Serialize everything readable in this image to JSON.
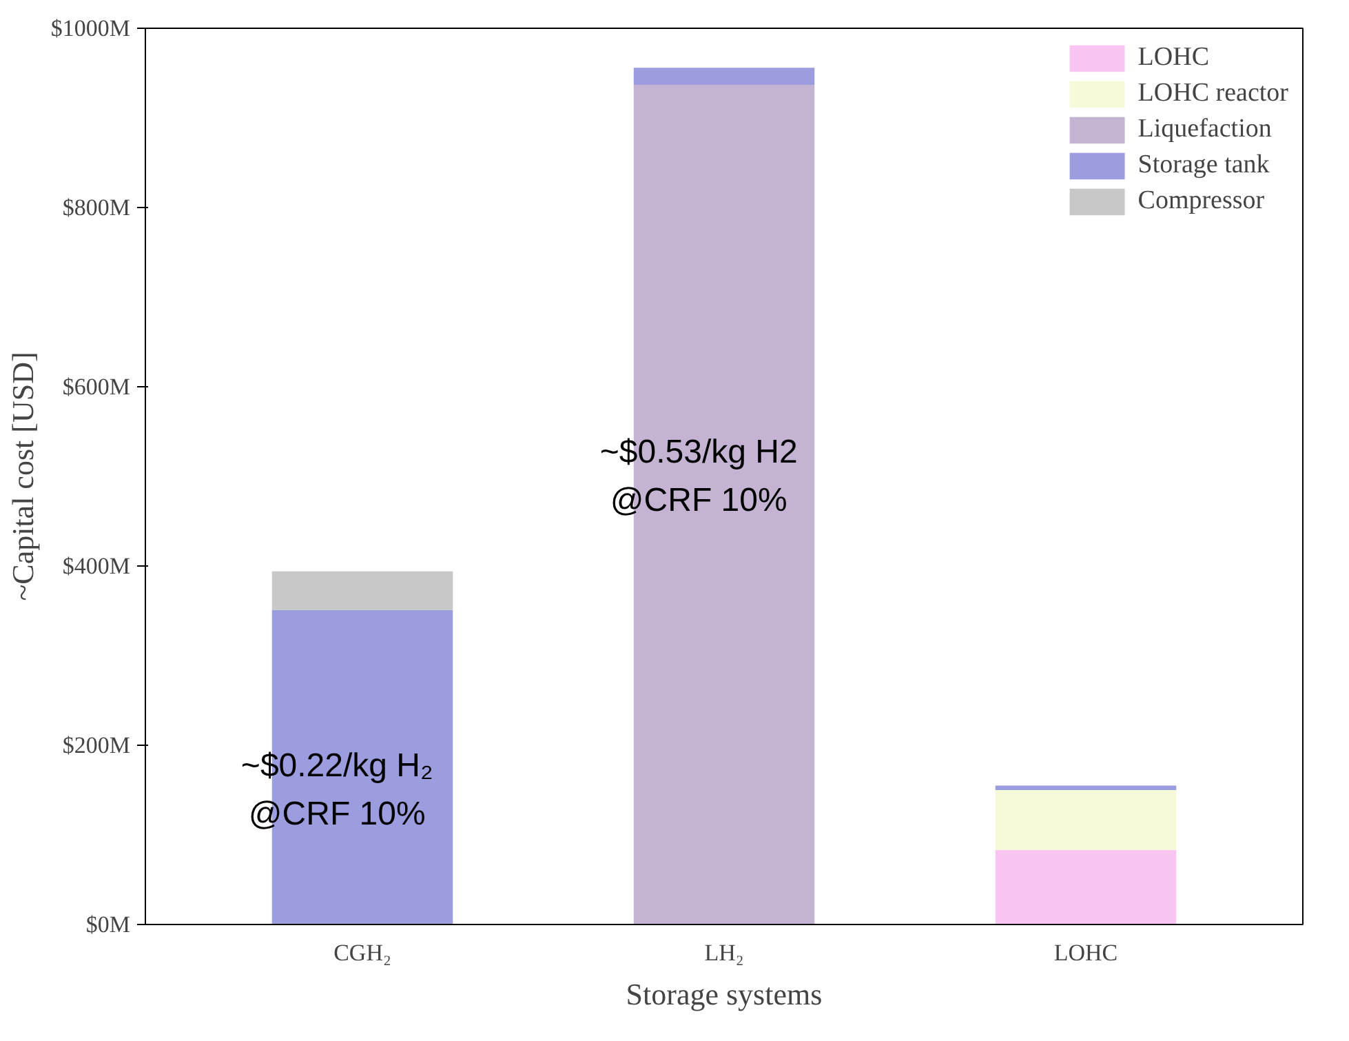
{
  "chart_data": {
    "type": "bar",
    "stacked": true,
    "xlabel": "Storage systems",
    "ylabel": "~Capital cost [USD]",
    "categories": [
      "CGH₂",
      "LH₂",
      "LOHC"
    ],
    "series": [
      {
        "name": "LOHC",
        "color": "#f9c6f3",
        "values": [
          null,
          null,
          83
        ]
      },
      {
        "name": "LOHC reactor",
        "color": "#f6fad9",
        "values": [
          null,
          null,
          67
        ]
      },
      {
        "name": "Liquefaction",
        "color": "#c4b3d2",
        "values": [
          null,
          937,
          null
        ]
      },
      {
        "name": "Storage tank",
        "color": "#9b9ddf",
        "values": [
          351,
          19,
          5
        ]
      },
      {
        "name": "Compressor",
        "color": "#c8c8c8",
        "values": [
          43,
          null,
          null
        ]
      }
    ],
    "ylim": [
      0,
      1000
    ],
    "yticks": [
      {
        "value": 0,
        "label": "$0M"
      },
      {
        "value": 200,
        "label": "$200M"
      },
      {
        "value": 400,
        "label": "$400M"
      },
      {
        "value": 600,
        "label": "$600M"
      },
      {
        "value": 800,
        "label": "$800M"
      },
      {
        "value": 1000,
        "label": "$1000M"
      }
    ],
    "annotations": [
      "~$0.22/kg H₂\n@CRF 10%",
      "~$0.53/kg H2\n@CRF 10%"
    ],
    "grid": false,
    "legend": "top right"
  }
}
